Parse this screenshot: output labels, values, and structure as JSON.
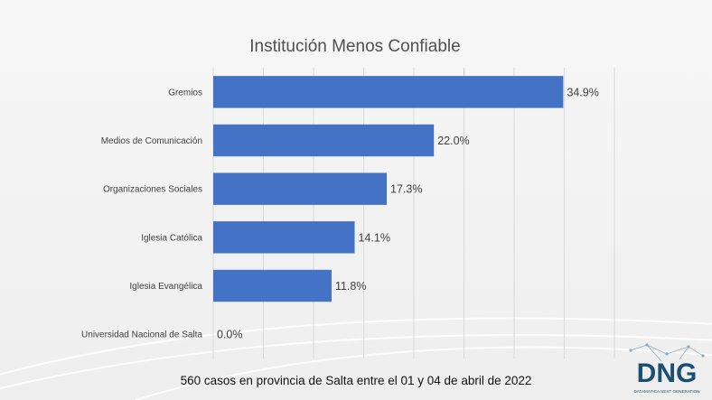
{
  "chart_data": {
    "type": "bar",
    "orientation": "horizontal",
    "title": "Institución Menos Confiable",
    "categories": [
      "Gremios",
      "Medios de Comunicación",
      "Organizaciones Sociales",
      "Iglesia Católica",
      "Iglesia Evangélica",
      "Universidad Nacional de Salta"
    ],
    "values": [
      34.9,
      22.0,
      17.3,
      14.1,
      11.8,
      0.0
    ],
    "value_labels": [
      "34.9%",
      "22.0%",
      "17.3%",
      "14.1%",
      "11.8%",
      "0.0%"
    ],
    "xlim": [
      0,
      40
    ],
    "grid": true,
    "bar_color": "#4472c4",
    "xlabel": "",
    "ylabel": ""
  },
  "footnote": "560 casos en provincia de Salta entre el 01 y 04 de abril de  2022",
  "logo": {
    "text": "DNG",
    "tagline": "DATAMATICA NEXT GENERATION",
    "colors": {
      "dark": "#1b4f72",
      "accent": "#2aa7d8"
    }
  }
}
